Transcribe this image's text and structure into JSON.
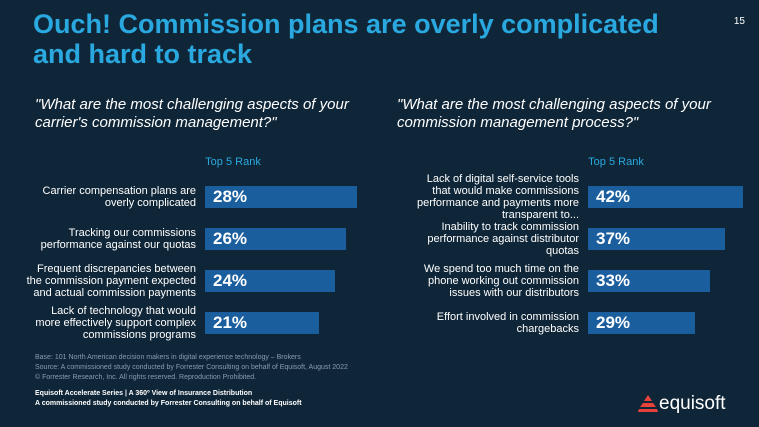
{
  "title": "Ouch! Commission plans are overly complicated and hard to track",
  "page_number": "15",
  "footnotes": [
    "Base: 101 North American decision makers in digital experience technology – Brokers",
    "Source: A commissioned study conducted by Forrester Consulting on behalf of Equisoft, August 2022",
    "© Forrester Research, Inc. All rights reserved. Reproduction Prohibited."
  ],
  "series_lines": [
    "Equisoft Accelerate Series | A 360º View of Insurance Distribution",
    "A commissioned study conducted by Forrester Consulting on behalf of Equisoft"
  ],
  "logo": "equisoft",
  "chart_data": [
    {
      "type": "bar",
      "orientation": "horizontal",
      "color": "#1b5e9e",
      "title": "\"What are the most challenging aspects of your carrier's commission management?\"",
      "subtitle": "Top 5 Rank",
      "categories": [
        "Carrier compensation plans are overly complicated",
        "Tracking our commissions performance against our quotas",
        "Frequent discrepancies between the commission payment expected and actual commission payments",
        "Lack of technology that would more effectively support complex commissions programs"
      ],
      "values": [
        28,
        26,
        24,
        21
      ],
      "value_labels": [
        "28%",
        "26%",
        "24%",
        "21%"
      ]
    },
    {
      "type": "bar",
      "orientation": "horizontal",
      "color": "#1b5e9e",
      "title": "\"What are the most challenging aspects of your commission management process?\"",
      "subtitle": "Top 5 Rank",
      "categories": [
        "Lack of digital self-service tools that would make commissions performance and payments more transparent to...",
        "Inability to track commission performance against distributor quotas",
        "We spend too much time on the phone working out commission issues with our distributors",
        "Effort involved in commission chargebacks"
      ],
      "values": [
        42,
        37,
        33,
        29
      ],
      "value_labels": [
        "42%",
        "37%",
        "33%",
        "29%"
      ]
    }
  ]
}
